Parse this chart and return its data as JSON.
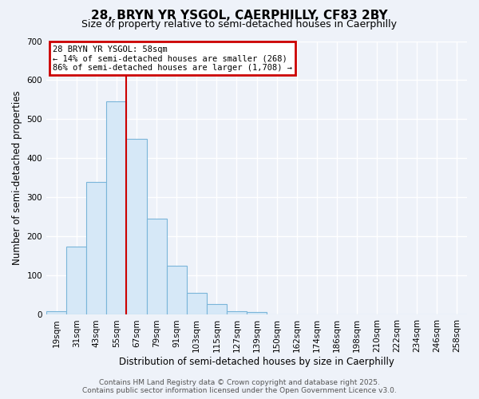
{
  "title": "28, BRYN YR YSGOL, CAERPHILLY, CF83 2BY",
  "subtitle": "Size of property relative to semi-detached houses in Caerphilly",
  "xlabel": "Distribution of semi-detached houses by size in Caerphilly",
  "ylabel": "Number of semi-detached properties",
  "bin_labels": [
    "19sqm",
    "31sqm",
    "43sqm",
    "55sqm",
    "67sqm",
    "79sqm",
    "91sqm",
    "103sqm",
    "115sqm",
    "127sqm",
    "139sqm",
    "150sqm",
    "162sqm",
    "174sqm",
    "186sqm",
    "198sqm",
    "210sqm",
    "222sqm",
    "234sqm",
    "246sqm",
    "258sqm"
  ],
  "counts": [
    10,
    175,
    340,
    545,
    450,
    245,
    125,
    57,
    27,
    10,
    8,
    0,
    0,
    0,
    0,
    0,
    0,
    0,
    0,
    0,
    0
  ],
  "bar_color": "#d6e8f7",
  "bar_edgecolor": "#7ab5d9",
  "property_line_index": 3.5,
  "property_line_color": "#cc0000",
  "ylim": [
    0,
    700
  ],
  "yticks": [
    0,
    100,
    200,
    300,
    400,
    500,
    600,
    700
  ],
  "annotation_title": "28 BRYN YR YSGOL: 58sqm",
  "annotation_line1": "← 14% of semi-detached houses are smaller (268)",
  "annotation_line2": "86% of semi-detached houses are larger (1,708) →",
  "annotation_box_color": "#cc0000",
  "footer1": "Contains HM Land Registry data © Crown copyright and database right 2025.",
  "footer2": "Contains public sector information licensed under the Open Government Licence v3.0.",
  "background_color": "#eef2f9",
  "grid_color": "#ffffff",
  "title_fontsize": 11,
  "subtitle_fontsize": 9,
  "axis_label_fontsize": 8.5,
  "tick_label_fontsize": 7.5,
  "footer_fontsize": 6.5
}
